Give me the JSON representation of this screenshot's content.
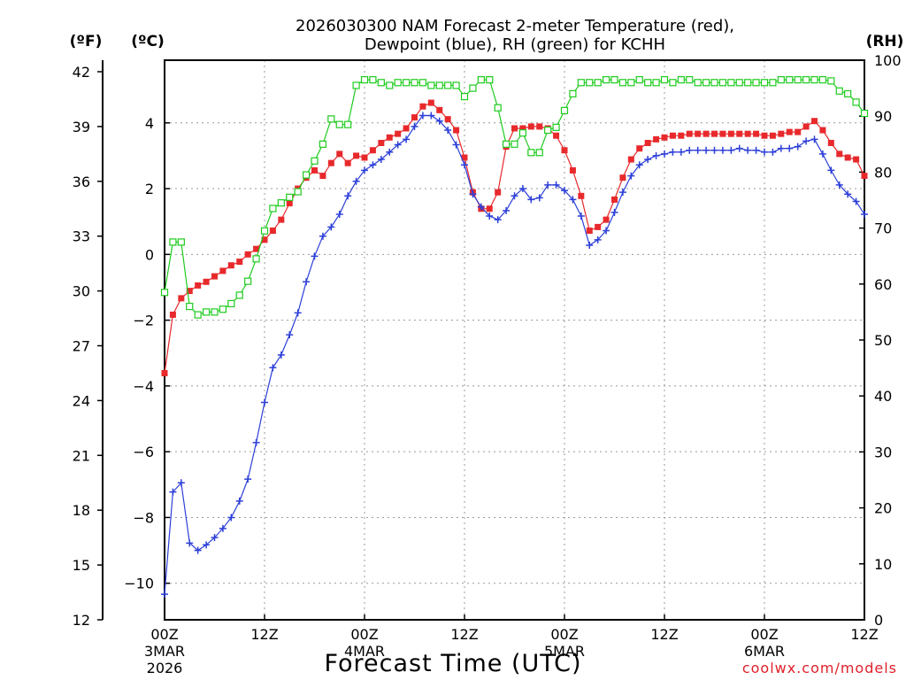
{
  "chart_data": {
    "type": "line",
    "title_line1": "2026030300 NAM Forecast 2-meter Temperature (red),",
    "title_line2": "Dewpoint (blue), RH (green) for KCHH",
    "xlabel": "Forecast Time (UTC)",
    "credit": "coolwx.com/models",
    "left_f_header": "(ºF)",
    "left_c_header": "(ºC)",
    "right_header": "(RH)",
    "x_range_hours": [
      0,
      84
    ],
    "y_f_range": [
      12,
      42.5
    ],
    "y_rh_range": [
      0,
      100
    ],
    "f_ticks": [
      "12",
      "15",
      "18",
      "21",
      "24",
      "27",
      "30",
      "33",
      "36",
      "39",
      "42"
    ],
    "f_tick_values": [
      12,
      15,
      18,
      21,
      24,
      27,
      30,
      33,
      36,
      39,
      42
    ],
    "c_ticks": [
      "−10",
      "−8",
      "−6",
      "−4",
      "−2",
      "0",
      "2",
      "4"
    ],
    "c_tick_values": [
      -10,
      -8,
      -6,
      -4,
      -2,
      0,
      2,
      4
    ],
    "rh_ticks": [
      "0",
      "10",
      "20",
      "30",
      "40",
      "50",
      "60",
      "70",
      "80",
      "90",
      "100"
    ],
    "rh_tick_values": [
      0,
      10,
      20,
      30,
      40,
      50,
      60,
      70,
      80,
      90,
      100
    ],
    "x_ticks": [
      {
        "hour": 0,
        "label": "00Z",
        "sub1": "3MAR",
        "sub2": "2026"
      },
      {
        "hour": 12,
        "label": "12Z",
        "sub1": "",
        "sub2": ""
      },
      {
        "hour": 24,
        "label": "00Z",
        "sub1": "4MAR",
        "sub2": ""
      },
      {
        "hour": 36,
        "label": "12Z",
        "sub1": "",
        "sub2": ""
      },
      {
        "hour": 48,
        "label": "00Z",
        "sub1": "5MAR",
        "sub2": ""
      },
      {
        "hour": 60,
        "label": "12Z",
        "sub1": "",
        "sub2": ""
      },
      {
        "hour": 72,
        "label": "00Z",
        "sub1": "6MAR",
        "sub2": ""
      },
      {
        "hour": 84,
        "label": "12Z",
        "sub1": "",
        "sub2": ""
      }
    ],
    "series": [
      {
        "name": "Temperature",
        "unit": "F",
        "color": "#e8292c",
        "marker": "filled-square",
        "x": [
          0,
          1,
          2,
          3,
          4,
          5,
          6,
          7,
          8,
          9,
          10,
          11,
          12,
          13,
          14,
          15,
          16,
          17,
          18,
          19,
          20,
          21,
          22,
          23,
          24,
          25,
          26,
          27,
          28,
          29,
          30,
          31,
          32,
          33,
          34,
          35,
          36,
          37,
          38,
          39,
          40,
          41,
          42,
          43,
          44,
          45,
          46,
          47,
          48,
          49,
          50,
          51,
          52,
          53,
          54,
          55,
          56,
          57,
          58,
          59,
          60,
          61,
          62,
          63,
          64,
          65,
          66,
          67,
          68,
          69,
          70,
          71,
          72,
          73,
          74,
          75,
          76,
          77,
          78,
          79,
          80,
          81,
          82,
          83,
          84
        ],
        "values": [
          25.5,
          28.7,
          29.6,
          30.0,
          30.3,
          30.5,
          30.8,
          31.1,
          31.4,
          31.6,
          32.0,
          32.3,
          32.8,
          33.3,
          33.9,
          34.8,
          35.6,
          36.2,
          36.6,
          36.3,
          37.0,
          37.5,
          37.0,
          37.4,
          37.3,
          37.7,
          38.1,
          38.4,
          38.6,
          38.9,
          39.5,
          40.1,
          40.3,
          39.9,
          39.4,
          38.8,
          37.3,
          35.4,
          34.5,
          34.5,
          35.4,
          37.9,
          38.9,
          38.9,
          39.0,
          39.0,
          38.9,
          38.5,
          37.7,
          36.6,
          35.2,
          33.3,
          33.5,
          33.9,
          35.0,
          36.2,
          37.2,
          37.8,
          38.1,
          38.3,
          38.4,
          38.5,
          38.5,
          38.6,
          38.6,
          38.6,
          38.6,
          38.6,
          38.6,
          38.6,
          38.6,
          38.6,
          38.5,
          38.5,
          38.6,
          38.7,
          38.7,
          39.0,
          39.3,
          38.8,
          38.1,
          37.5,
          37.3,
          37.2,
          36.3
        ]
      },
      {
        "name": "Dewpoint",
        "unit": "F",
        "color": "#2c3fd8",
        "marker": "plus",
        "x": [
          0,
          1,
          2,
          3,
          4,
          5,
          6,
          7,
          8,
          9,
          10,
          11,
          12,
          13,
          14,
          15,
          16,
          17,
          18,
          19,
          20,
          21,
          22,
          23,
          24,
          25,
          26,
          27,
          28,
          29,
          30,
          31,
          32,
          33,
          34,
          35,
          36,
          37,
          38,
          39,
          40,
          41,
          42,
          43,
          44,
          45,
          46,
          47,
          48,
          49,
          50,
          51,
          52,
          53,
          54,
          55,
          56,
          57,
          58,
          59,
          60,
          61,
          62,
          63,
          64,
          65,
          66,
          67,
          68,
          69,
          70,
          71,
          72,
          73,
          74,
          75,
          76,
          77,
          78,
          79,
          80,
          81,
          82,
          83,
          84
        ],
        "values": [
          13.4,
          19.0,
          19.5,
          16.2,
          15.8,
          16.1,
          16.5,
          17.0,
          17.6,
          18.5,
          19.7,
          21.7,
          23.9,
          25.8,
          26.5,
          27.6,
          28.8,
          30.5,
          31.9,
          33.0,
          33.5,
          34.2,
          35.2,
          36.0,
          36.6,
          36.9,
          37.2,
          37.6,
          38.0,
          38.3,
          39.0,
          39.6,
          39.6,
          39.3,
          38.8,
          38.0,
          36.9,
          35.3,
          34.6,
          34.1,
          33.9,
          34.4,
          35.2,
          35.6,
          35.0,
          35.1,
          35.8,
          35.8,
          35.5,
          35.0,
          34.1,
          32.5,
          32.8,
          33.3,
          34.3,
          35.4,
          36.3,
          36.9,
          37.2,
          37.4,
          37.5,
          37.6,
          37.6,
          37.7,
          37.7,
          37.7,
          37.7,
          37.7,
          37.7,
          37.8,
          37.7,
          37.7,
          37.6,
          37.6,
          37.8,
          37.8,
          37.9,
          38.2,
          38.3,
          37.5,
          36.6,
          35.8,
          35.3,
          34.9,
          34.2
        ]
      },
      {
        "name": "RH",
        "unit": "%",
        "color": "#1ecb1e",
        "marker": "open-square",
        "x": [
          0,
          1,
          2,
          3,
          4,
          5,
          6,
          7,
          8,
          9,
          10,
          11,
          12,
          13,
          14,
          15,
          16,
          17,
          18,
          19,
          20,
          21,
          22,
          23,
          24,
          25,
          26,
          27,
          28,
          29,
          30,
          31,
          32,
          33,
          34,
          35,
          36,
          37,
          38,
          39,
          40,
          41,
          42,
          43,
          44,
          45,
          46,
          47,
          48,
          49,
          50,
          51,
          52,
          53,
          54,
          55,
          56,
          57,
          58,
          59,
          60,
          61,
          62,
          63,
          64,
          65,
          66,
          67,
          68,
          69,
          70,
          71,
          72,
          73,
          74,
          75,
          76,
          77,
          78,
          79,
          80,
          81,
          82,
          83,
          84
        ],
        "values": [
          58.5,
          67.5,
          67.5,
          56.0,
          54.5,
          55.0,
          55.0,
          55.5,
          56.5,
          58.0,
          60.5,
          64.5,
          69.5,
          73.5,
          74.5,
          75.5,
          76.5,
          79.5,
          82.0,
          85.0,
          89.5,
          88.5,
          88.5,
          95.5,
          96.5,
          96.5,
          96.0,
          95.5,
          96.0,
          96.0,
          96.0,
          96.0,
          95.5,
          95.5,
          95.5,
          95.5,
          93.5,
          95.0,
          96.5,
          96.5,
          91.5,
          85.0,
          85.0,
          87.0,
          83.5,
          83.5,
          87.5,
          88.0,
          91.0,
          94.0,
          96.0,
          96.0,
          96.0,
          96.5,
          96.5,
          96.0,
          96.0,
          96.5,
          96.0,
          96.0,
          96.5,
          96.0,
          96.5,
          96.5,
          96.0,
          96.0,
          96.0,
          96.0,
          96.0,
          96.0,
          96.0,
          96.0,
          96.0,
          96.0,
          96.5,
          96.5,
          96.5,
          96.5,
          96.5,
          96.5,
          96.3,
          94.5,
          94.0,
          92.5,
          90.5
        ]
      }
    ]
  }
}
